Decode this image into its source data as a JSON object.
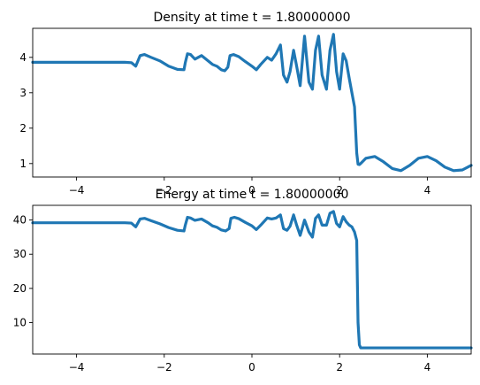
{
  "colors": {
    "series": "#1f77b4",
    "axes": "#000000",
    "background": "#ffffff"
  },
  "chart_data": [
    {
      "type": "line",
      "title": "Density at time t =      1.80000000",
      "xlim": [
        -5,
        5
      ],
      "ylim": [
        0.62,
        4.82
      ],
      "xticks": [
        -4,
        -2,
        0,
        2,
        4
      ],
      "yticks": [
        1,
        2,
        3,
        4
      ],
      "grid": false,
      "series": [
        {
          "x": [
            -5,
            -2.9,
            -2.75,
            -2.65,
            -2.55,
            -2.45,
            -2.3,
            -2.1,
            -1.9,
            -1.7,
            -1.55,
            -1.52,
            -1.47,
            -1.4,
            -1.3,
            -1.15,
            -1.0,
            -0.9,
            -0.8,
            -0.7,
            -0.62,
            -0.55,
            -0.5,
            -0.42,
            -0.3,
            -0.15,
            0.0,
            0.1,
            0.2,
            0.35,
            0.45,
            0.55,
            0.65,
            0.72,
            0.8,
            0.87,
            0.95,
            1.02,
            1.1,
            1.2,
            1.3,
            1.38,
            1.45,
            1.52,
            1.6,
            1.7,
            1.78,
            1.86,
            1.93,
            2.0,
            2.08,
            2.15,
            2.22,
            2.28,
            2.34,
            2.39,
            2.42,
            2.45,
            2.48,
            2.6,
            2.8,
            3.0,
            3.2,
            3.4,
            3.6,
            3.8,
            4.0,
            4.2,
            4.4,
            4.6,
            4.8,
            5.0
          ],
          "y": [
            3.86,
            3.86,
            3.85,
            3.75,
            4.05,
            4.08,
            4.0,
            3.9,
            3.75,
            3.66,
            3.65,
            3.85,
            4.1,
            4.08,
            3.95,
            4.05,
            3.9,
            3.8,
            3.75,
            3.65,
            3.62,
            3.72,
            4.05,
            4.08,
            4.02,
            3.88,
            3.75,
            3.65,
            3.8,
            4.0,
            3.92,
            4.1,
            4.35,
            3.5,
            3.3,
            3.6,
            4.2,
            3.75,
            3.2,
            4.6,
            3.3,
            3.1,
            4.2,
            4.6,
            3.5,
            3.1,
            4.2,
            4.65,
            3.6,
            3.1,
            4.1,
            3.9,
            3.4,
            3.0,
            2.6,
            1.3,
            0.98,
            0.97,
            1.0,
            1.15,
            1.2,
            1.05,
            0.86,
            0.8,
            0.95,
            1.15,
            1.2,
            1.08,
            0.9,
            0.8,
            0.82,
            0.95
          ]
        }
      ]
    },
    {
      "type": "line",
      "title": "Energy at time t =      1.80000000",
      "xlim": [
        -5,
        5
      ],
      "ylim": [
        0.8,
        44.3
      ],
      "xticks": [
        -4,
        -2,
        0,
        2,
        4
      ],
      "xticklabels": [
        "−4",
        "−2",
        "0",
        "2",
        "4"
      ],
      "yticks": [
        10,
        20,
        30,
        40
      ],
      "grid": false,
      "series": [
        {
          "x": [
            -5,
            -2.9,
            -2.75,
            -2.65,
            -2.55,
            -2.45,
            -2.3,
            -2.1,
            -1.9,
            -1.7,
            -1.55,
            -1.52,
            -1.47,
            -1.4,
            -1.3,
            -1.15,
            -1.0,
            -0.9,
            -0.8,
            -0.7,
            -0.6,
            -0.52,
            -0.48,
            -0.4,
            -0.3,
            -0.15,
            0.0,
            0.1,
            0.2,
            0.35,
            0.45,
            0.55,
            0.65,
            0.72,
            0.8,
            0.87,
            0.95,
            1.02,
            1.1,
            1.2,
            1.3,
            1.38,
            1.45,
            1.52,
            1.6,
            1.7,
            1.78,
            1.86,
            1.93,
            2.0,
            2.08,
            2.15,
            2.22,
            2.28,
            2.34,
            2.39,
            2.42,
            2.45,
            2.48,
            3.0,
            4.0,
            5.0
          ],
          "y": [
            39.2,
            39.2,
            39.1,
            38.0,
            40.3,
            40.5,
            39.8,
            38.9,
            37.8,
            37.0,
            36.8,
            38.5,
            40.8,
            40.6,
            39.9,
            40.3,
            39.2,
            38.3,
            37.9,
            37.1,
            36.8,
            37.5,
            40.5,
            40.8,
            40.4,
            39.3,
            38.3,
            37.2,
            38.5,
            40.6,
            40.3,
            40.6,
            41.5,
            37.5,
            37.0,
            38.2,
            41.5,
            38.5,
            35.5,
            40.0,
            36.5,
            35.0,
            40.5,
            41.5,
            38.5,
            38.5,
            42.0,
            42.5,
            39.0,
            38.0,
            41.0,
            39.5,
            38.5,
            38.0,
            36.5,
            34.0,
            10.0,
            3.5,
            2.6,
            2.6,
            2.6,
            2.6
          ]
        }
      ]
    }
  ]
}
